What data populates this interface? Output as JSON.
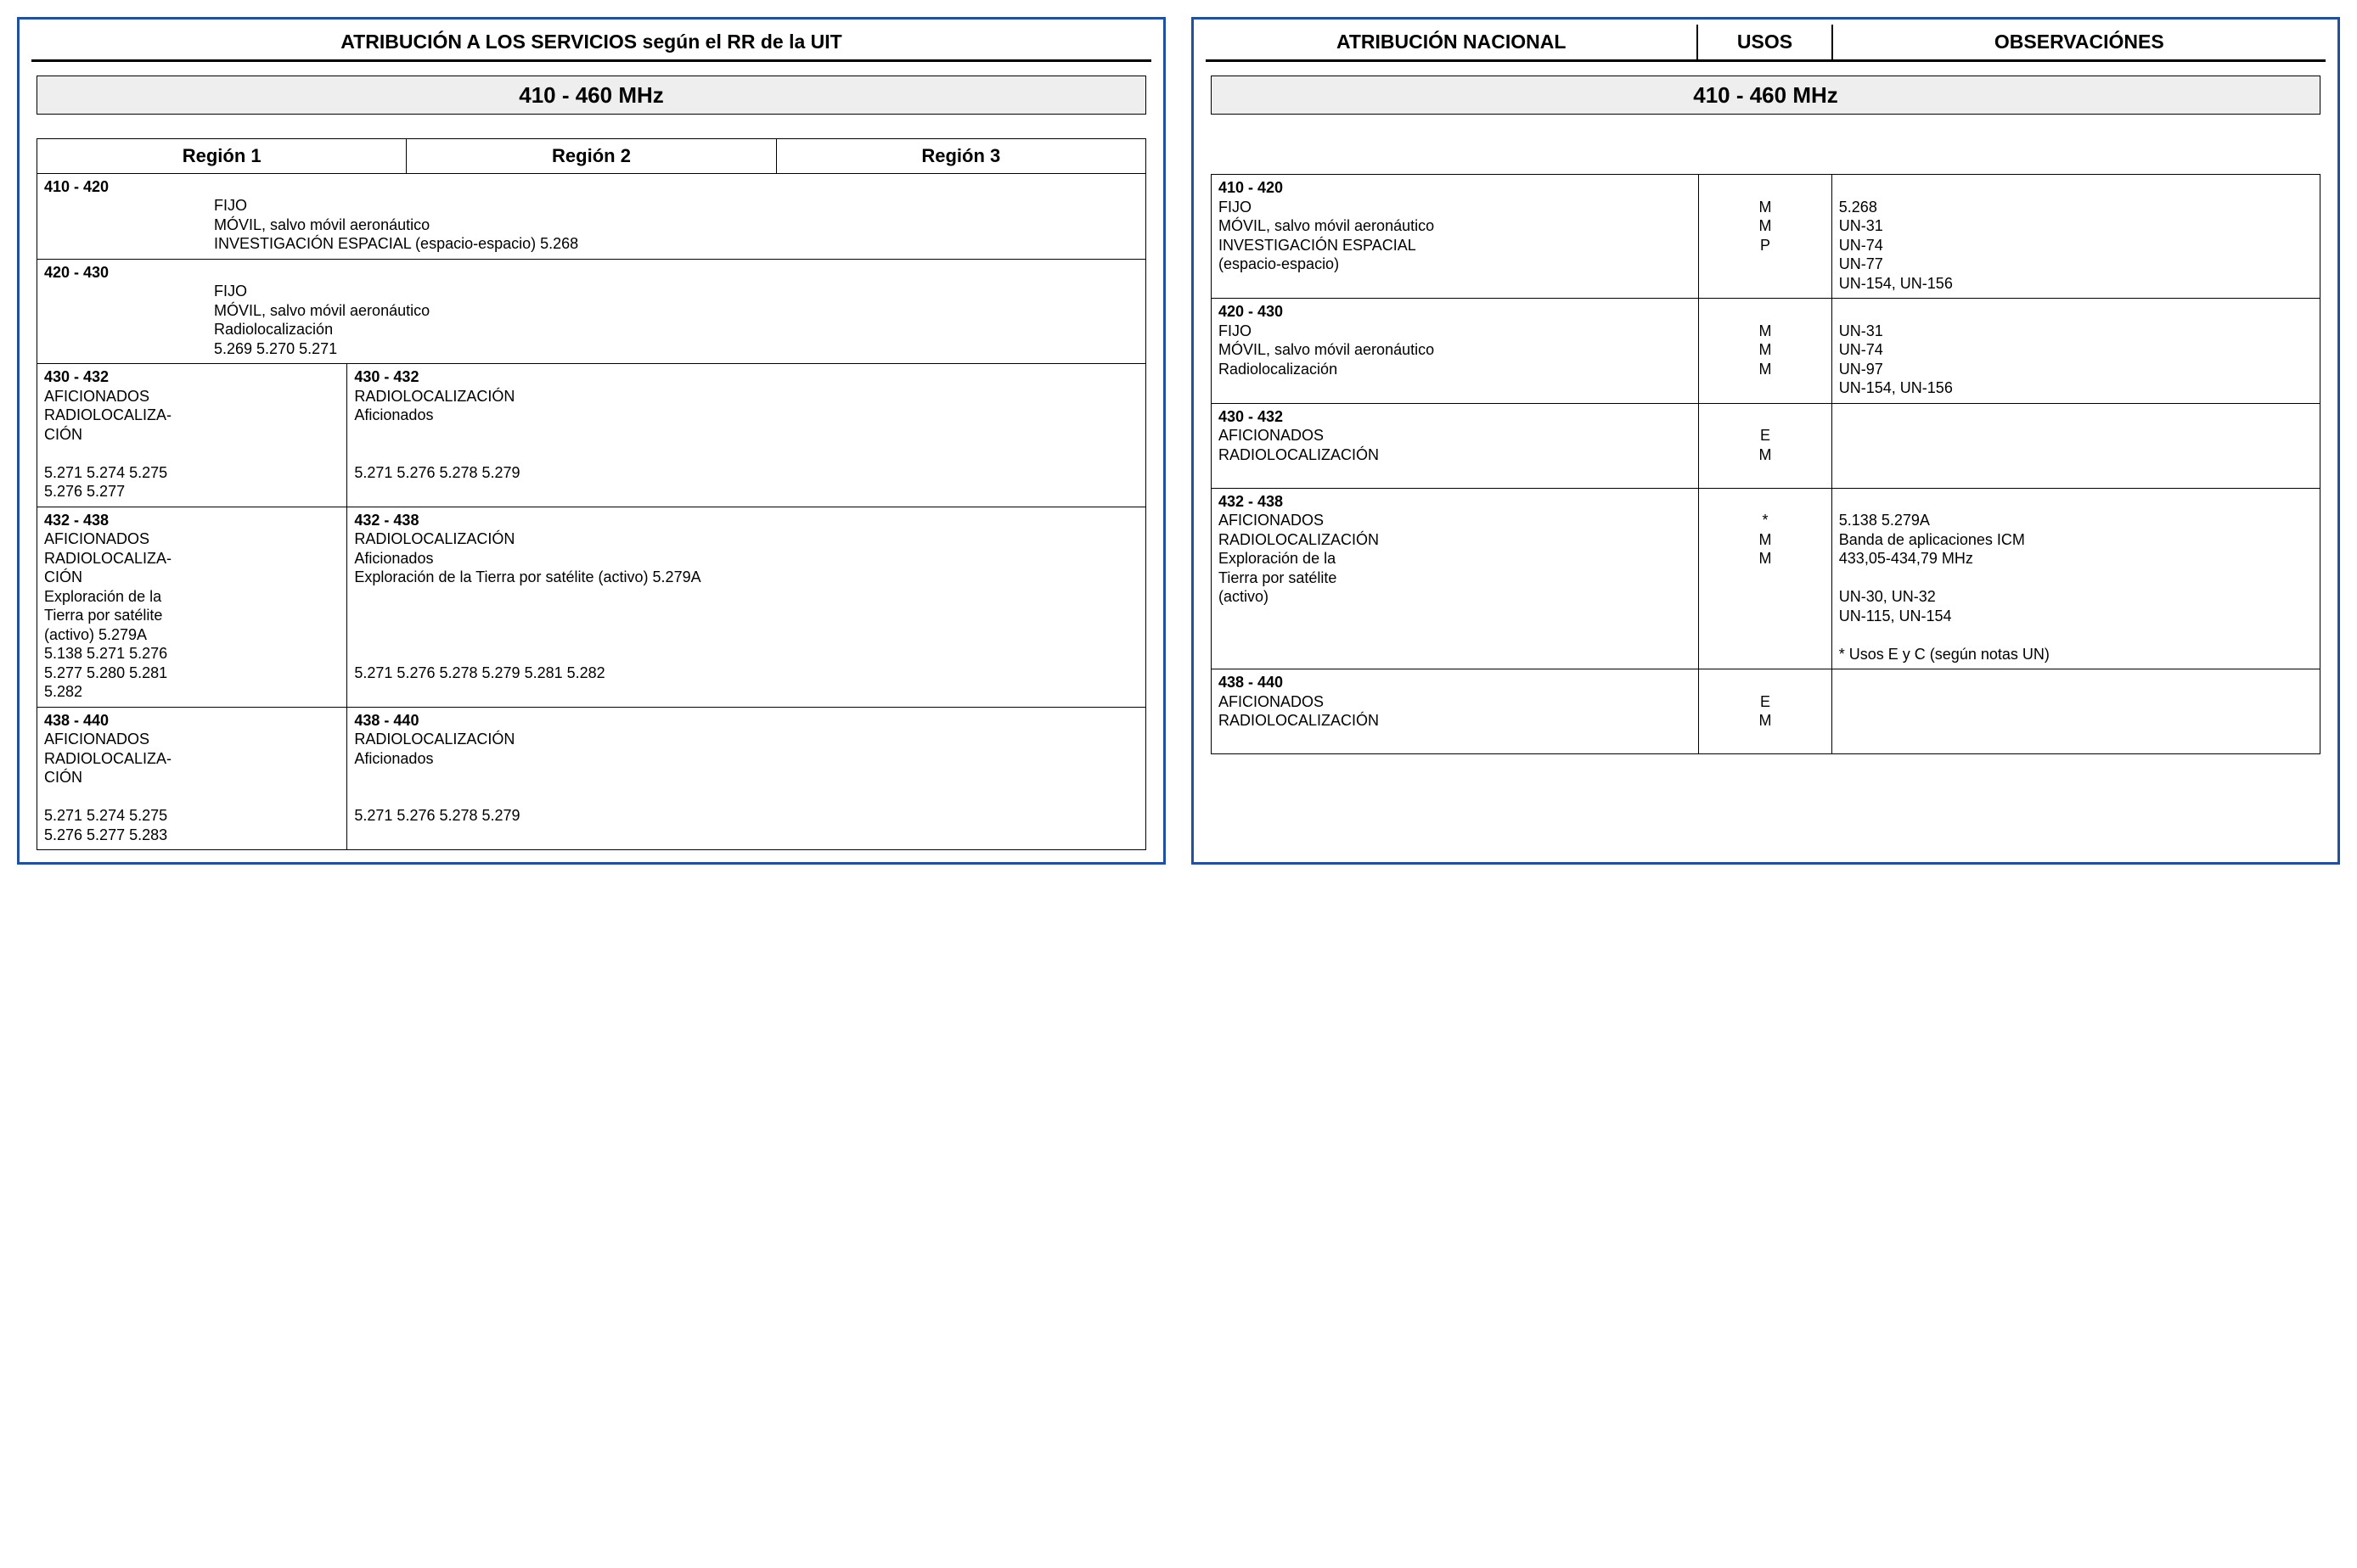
{
  "left": {
    "title": "ATRIBUCIÓN A LOS SERVICIOS según el RR de la UIT",
    "band": "410 - 460 MHz",
    "regions": {
      "r1": "Región 1",
      "r2": "Región 2",
      "r3": "Región 3"
    },
    "rows": [
      {
        "span": true,
        "range": "410 - 420",
        "body": "FIJO\nMÓVIL, salvo móvil aeronáutico\nINVESTIGACIÓN ESPACIAL (espacio-espacio) 5.268"
      },
      {
        "span": true,
        "range": "420 - 430",
        "body": "FIJO\nMÓVIL, salvo móvil aeronáutico\nRadiolocalización\n5.269 5.270 5.271"
      },
      {
        "r1_range": "430 - 432",
        "r1_body": "AFICIONADOS\nRADIOLOCALIZA-\n   CIÓN\n\n5.271 5.274 5.275\n5.276 5.277",
        "r23_range": "430 - 432",
        "r23_body": "   RADIOLOCALIZACIÓN\n   Aficionados\n\n\n   5.271 5.276 5.278  5.279"
      },
      {
        "r1_range": "432 - 438",
        "r1_body": "AFICIONADOS\nRADIOLOCALIZA-\n   CIÓN\nExploración de la\n  Tierra por satélite\n  (activo) 5.279A\n5.138 5.271 5.276\n5.277 5.280 5.281\n5.282",
        "r23_range": "432 - 438",
        "r23_body": "   RADIOLOCALIZACIÓN\n   Aficionados\n   Exploración de la Tierra por satélite (activo) 5.279A\n\n\n\n\n   5.271 5.276 5.278  5.279 5.281 5.282"
      },
      {
        "r1_range": "438 - 440",
        "r1_body": "AFICIONADOS\nRADIOLOCALIZA-\n   CIÓN\n\n5.271 5.274 5.275\n5.276 5.277 5.283",
        "r23_range": "438 - 440",
        "r23_body": "   RADIOLOCALIZACIÓN\n   Aficionados\n\n\n   5.271 5.276  5.278  5.279"
      }
    ]
  },
  "right": {
    "hdr_attr": "ATRIBUCIÓN NACIONAL",
    "hdr_usos": "USOS",
    "hdr_obs": "OBSERVACIÓNES",
    "band": "410 - 460 MHz",
    "rows": [
      {
        "range": "410 - 420",
        "attr": "FIJO\nMÓVIL, salvo móvil aeronáutico\nINVESTIGACIÓN ESPACIAL\n   (espacio-espacio)",
        "usos": "\nM\nM\nP",
        "obs": "\n5.268\nUN-31\nUN-74\nUN-77\nUN-154, UN-156"
      },
      {
        "range": "420 - 430",
        "attr": "FIJO\nMÓVIL, salvo móvil aeronáutico\nRadiolocalización",
        "usos": "\nM\nM\nM",
        "obs": "\nUN-31\nUN-74\nUN-97\nUN-154, UN-156"
      },
      {
        "range": "430 - 432",
        "attr": "AFICIONADOS\nRADIOLOCALIZACIÓN",
        "usos": "\nE\nM",
        "obs": ""
      },
      {
        "range": "432 - 438",
        "attr": "AFICIONADOS\nRADIOLOCALIZACIÓN\nExploración de la\n  Tierra por satélite\n  (activo)",
        "usos": "\n*\nM\nM",
        "obs": "\n5.138  5.279A\nBanda de aplicaciones ICM\n433,05-434,79 MHz\n\nUN-30, UN-32\nUN-115, UN-154\n\n* Usos E y C (según notas UN)"
      },
      {
        "range": "438 - 440",
        "attr": "AFICIONADOS\nRADIOLOCALIZACIÓN",
        "usos": "\nE\nM",
        "obs": ""
      }
    ]
  }
}
